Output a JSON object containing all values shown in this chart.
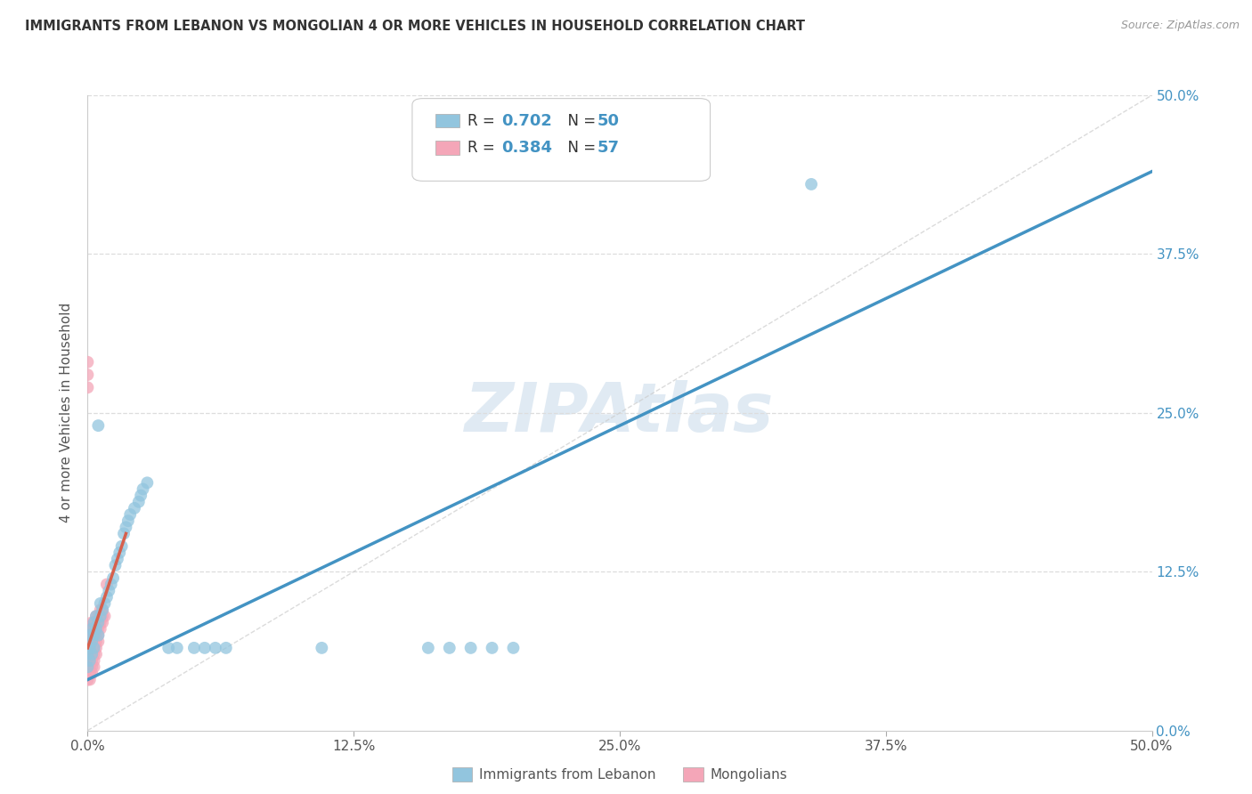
{
  "title": "IMMIGRANTS FROM LEBANON VS MONGOLIAN 4 OR MORE VEHICLES IN HOUSEHOLD CORRELATION CHART",
  "source": "Source: ZipAtlas.com",
  "ylabel": "4 or more Vehicles in Household",
  "xlim": [
    0.0,
    0.5
  ],
  "ylim": [
    0.0,
    0.5
  ],
  "xtick_vals": [
    0.0,
    0.125,
    0.25,
    0.375,
    0.5
  ],
  "xtick_labels": [
    "0.0%",
    "12.5%",
    "25.0%",
    "37.5%",
    "50.0%"
  ],
  "ytick_vals": [
    0.0,
    0.125,
    0.25,
    0.375,
    0.5
  ],
  "ytick_right_labels": [
    "0.0%",
    "12.5%",
    "25.0%",
    "37.5%",
    "50.0%"
  ],
  "R_blue": 0.702,
  "N_blue": 50,
  "R_pink": 0.384,
  "N_pink": 57,
  "blue_color": "#92c5de",
  "pink_color": "#f4a6b8",
  "trendline_blue_color": "#4393c3",
  "trendline_pink_color": "#d6604d",
  "diagonal_color": "#cccccc",
  "legend_label_blue": "Immigrants from Lebanon",
  "legend_label_pink": "Mongolians",
  "watermark": "ZIPAtlas",
  "blue_trendline": [
    [
      0.0,
      0.04
    ],
    [
      0.5,
      0.44
    ]
  ],
  "pink_trendline": [
    [
      0.0,
      0.065
    ],
    [
      0.018,
      0.155
    ]
  ],
  "blue_points": [
    [
      0.0,
      0.05
    ],
    [
      0.0,
      0.06
    ],
    [
      0.001,
      0.055
    ],
    [
      0.001,
      0.065
    ],
    [
      0.001,
      0.075
    ],
    [
      0.002,
      0.07
    ],
    [
      0.002,
      0.08
    ],
    [
      0.002,
      0.06
    ],
    [
      0.003,
      0.075
    ],
    [
      0.003,
      0.085
    ],
    [
      0.003,
      0.065
    ],
    [
      0.004,
      0.08
    ],
    [
      0.004,
      0.09
    ],
    [
      0.005,
      0.075
    ],
    [
      0.005,
      0.085
    ],
    [
      0.006,
      0.09
    ],
    [
      0.006,
      0.1
    ],
    [
      0.007,
      0.095
    ],
    [
      0.008,
      0.1
    ],
    [
      0.009,
      0.105
    ],
    [
      0.01,
      0.11
    ],
    [
      0.011,
      0.115
    ],
    [
      0.012,
      0.12
    ],
    [
      0.013,
      0.13
    ],
    [
      0.014,
      0.135
    ],
    [
      0.015,
      0.14
    ],
    [
      0.016,
      0.145
    ],
    [
      0.017,
      0.155
    ],
    [
      0.018,
      0.16
    ],
    [
      0.019,
      0.165
    ],
    [
      0.02,
      0.17
    ],
    [
      0.022,
      0.175
    ],
    [
      0.024,
      0.18
    ],
    [
      0.025,
      0.185
    ],
    [
      0.026,
      0.19
    ],
    [
      0.028,
      0.195
    ],
    [
      0.038,
      0.065
    ],
    [
      0.042,
      0.065
    ],
    [
      0.05,
      0.065
    ],
    [
      0.055,
      0.065
    ],
    [
      0.06,
      0.065
    ],
    [
      0.065,
      0.065
    ],
    [
      0.11,
      0.065
    ],
    [
      0.16,
      0.065
    ],
    [
      0.17,
      0.065
    ],
    [
      0.18,
      0.065
    ],
    [
      0.19,
      0.065
    ],
    [
      0.2,
      0.065
    ],
    [
      0.34,
      0.43
    ],
    [
      0.005,
      0.24
    ]
  ],
  "pink_points": [
    [
      0.0,
      0.04
    ],
    [
      0.0,
      0.05
    ],
    [
      0.0,
      0.055
    ],
    [
      0.0,
      0.06
    ],
    [
      0.0,
      0.065
    ],
    [
      0.0,
      0.07
    ],
    [
      0.0,
      0.075
    ],
    [
      0.0,
      0.27
    ],
    [
      0.0,
      0.28
    ],
    [
      0.0,
      0.29
    ],
    [
      0.001,
      0.04
    ],
    [
      0.001,
      0.045
    ],
    [
      0.001,
      0.05
    ],
    [
      0.001,
      0.055
    ],
    [
      0.001,
      0.06
    ],
    [
      0.001,
      0.065
    ],
    [
      0.001,
      0.07
    ],
    [
      0.001,
      0.075
    ],
    [
      0.001,
      0.08
    ],
    [
      0.002,
      0.045
    ],
    [
      0.002,
      0.05
    ],
    [
      0.002,
      0.055
    ],
    [
      0.002,
      0.06
    ],
    [
      0.002,
      0.065
    ],
    [
      0.002,
      0.07
    ],
    [
      0.002,
      0.075
    ],
    [
      0.002,
      0.08
    ],
    [
      0.002,
      0.085
    ],
    [
      0.003,
      0.05
    ],
    [
      0.003,
      0.055
    ],
    [
      0.003,
      0.06
    ],
    [
      0.003,
      0.065
    ],
    [
      0.003,
      0.07
    ],
    [
      0.003,
      0.075
    ],
    [
      0.003,
      0.08
    ],
    [
      0.003,
      0.085
    ],
    [
      0.004,
      0.06
    ],
    [
      0.004,
      0.065
    ],
    [
      0.004,
      0.07
    ],
    [
      0.004,
      0.075
    ],
    [
      0.004,
      0.08
    ],
    [
      0.004,
      0.085
    ],
    [
      0.004,
      0.09
    ],
    [
      0.005,
      0.07
    ],
    [
      0.005,
      0.075
    ],
    [
      0.005,
      0.08
    ],
    [
      0.005,
      0.085
    ],
    [
      0.005,
      0.09
    ],
    [
      0.006,
      0.08
    ],
    [
      0.006,
      0.085
    ],
    [
      0.006,
      0.09
    ],
    [
      0.006,
      0.095
    ],
    [
      0.007,
      0.085
    ],
    [
      0.007,
      0.09
    ],
    [
      0.007,
      0.095
    ],
    [
      0.008,
      0.09
    ],
    [
      0.009,
      0.115
    ]
  ]
}
